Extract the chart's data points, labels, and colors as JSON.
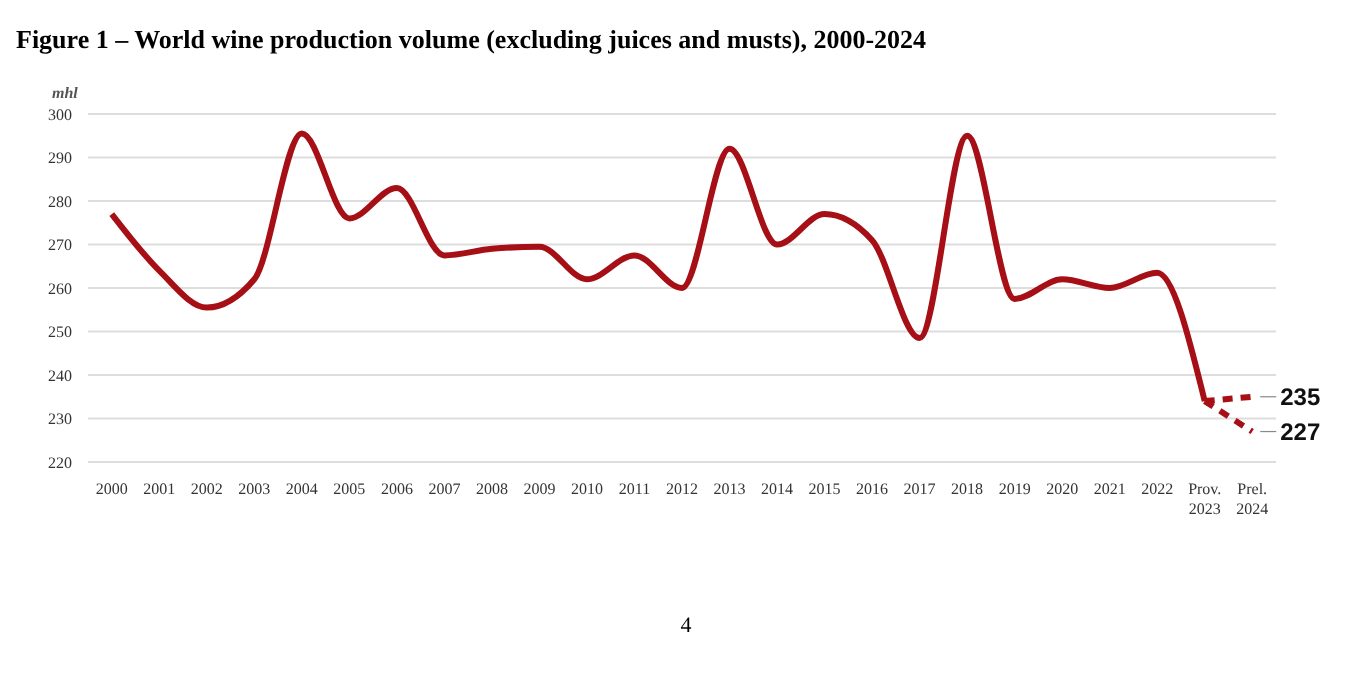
{
  "chart_data": {
    "type": "line",
    "title": "Figure 1 – World wine production volume (excluding juices and musts), 2000-2024",
    "ylabel": "mhl",
    "categories": [
      "2000",
      "2001",
      "2002",
      "2003",
      "2004",
      "2005",
      "2006",
      "2007",
      "2008",
      "2009",
      "2010",
      "2011",
      "2012",
      "2013",
      "2014",
      "2015",
      "2016",
      "2017",
      "2018",
      "2019",
      "2020",
      "2021",
      "2022",
      "Prov. 2023",
      "Prel. 2024"
    ],
    "series": [
      {
        "color": "#a50f15",
        "line_style": "solid",
        "values": [
          277,
          264,
          255.5,
          262,
          295.5,
          276,
          283,
          267.5,
          269,
          269.5,
          262,
          267.5,
          260,
          292,
          270,
          277,
          271,
          248.5,
          295,
          257.5,
          262,
          260,
          263.5,
          234,
          null
        ]
      },
      {
        "color": "#a50f15",
        "line_style": "dashed",
        "values": [
          null,
          null,
          null,
          null,
          null,
          null,
          null,
          null,
          null,
          null,
          null,
          null,
          null,
          null,
          null,
          null,
          null,
          null,
          null,
          null,
          null,
          null,
          null,
          234,
          235
        ],
        "value_labels": [
          null,
          null,
          null,
          null,
          null,
          null,
          null,
          null,
          null,
          null,
          null,
          null,
          null,
          null,
          null,
          null,
          null,
          null,
          null,
          null,
          null,
          null,
          null,
          null,
          "235"
        ]
      },
      {
        "color": "#a50f15",
        "line_style": "dashed",
        "values": [
          null,
          null,
          null,
          null,
          null,
          null,
          null,
          null,
          null,
          null,
          null,
          null,
          null,
          null,
          null,
          null,
          null,
          null,
          null,
          null,
          null,
          null,
          null,
          234,
          227
        ],
        "value_labels": [
          null,
          null,
          null,
          null,
          null,
          null,
          null,
          null,
          null,
          null,
          null,
          null,
          null,
          null,
          null,
          null,
          null,
          null,
          null,
          null,
          null,
          null,
          null,
          null,
          "227"
        ]
      }
    ],
    "ylim": [
      220,
      300
    ],
    "yticks": [
      220,
      230,
      240,
      250,
      260,
      270,
      280,
      290,
      300
    ],
    "grid": "y",
    "legend": false,
    "marker": "none",
    "annotations": [
      "4"
    ]
  }
}
